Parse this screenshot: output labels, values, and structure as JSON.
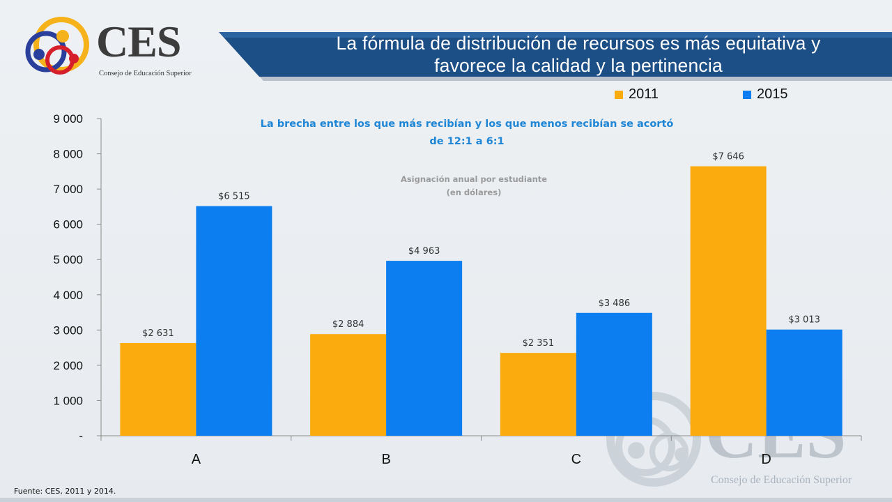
{
  "header": {
    "logo_text": "CES",
    "logo_subtitle": "Consejo de Educación Superior",
    "title_line1": "La fórmula de distribución de recursos es más equitativa y",
    "title_line2": "favorece la calidad y la pertinencia"
  },
  "headline_line1": "La brecha entre los que más recibían y los que menos recibían se acortó",
  "headline_line2": "de 12:1 a  6:1",
  "subcaption_line1": "Asignación anual por estudiante",
  "subcaption_line2": "(en dólares)",
  "source": "Fuente: CES, 2011 y 2014.",
  "watermark": {
    "text": "CES",
    "subtitle": "Consejo de Educación Superior"
  },
  "colors": {
    "series_2011": "#fbab0e",
    "series_2015": "#0d7ef0",
    "title_band": "#1c4f86",
    "headline": "#1f86d6"
  },
  "chart_data": {
    "type": "bar",
    "categories": [
      "A",
      "B",
      "C",
      "D"
    ],
    "series": [
      {
        "name": "2011",
        "values": [
          2631,
          2884,
          2351,
          7646
        ],
        "labels": [
          "$2 631",
          "$2 884",
          "$2 351",
          "$7 646"
        ]
      },
      {
        "name": "2015",
        "values": [
          6515,
          4963,
          3486,
          3013
        ],
        "labels": [
          "$6 515",
          "$4 963",
          "$3 486",
          "$3 013"
        ]
      }
    ],
    "ylim": [
      0,
      9000
    ],
    "yticks": [
      0,
      1000,
      2000,
      3000,
      4000,
      5000,
      6000,
      7000,
      8000,
      9000
    ],
    "ytick_labels": [
      "-",
      "1 000",
      "2 000",
      "3 000",
      "4 000",
      "5 000",
      "6 000",
      "7 000",
      "8 000",
      "9 000"
    ],
    "grid": false,
    "legend": "top-right"
  }
}
